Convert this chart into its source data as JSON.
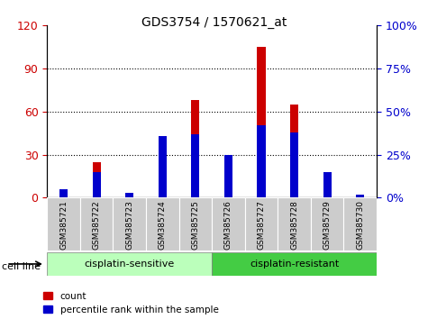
{
  "title": "GDS3754 / 1570621_at",
  "samples": [
    "GSM385721",
    "GSM385722",
    "GSM385723",
    "GSM385724",
    "GSM385725",
    "GSM385726",
    "GSM385727",
    "GSM385728",
    "GSM385729",
    "GSM385730"
  ],
  "counts": [
    3,
    25,
    3,
    43,
    68,
    30,
    105,
    65,
    8,
    2
  ],
  "percentiles": [
    5,
    15,
    3,
    36,
    37,
    25,
    42,
    38,
    15,
    2
  ],
  "left_ylim": [
    0,
    120
  ],
  "right_ylim": [
    0,
    100
  ],
  "left_yticks": [
    0,
    30,
    60,
    90,
    120
  ],
  "right_yticks": [
    0,
    25,
    50,
    75,
    100
  ],
  "left_ytick_labels": [
    "0",
    "30",
    "60",
    "90",
    "120"
  ],
  "right_ytick_labels": [
    "0%",
    "25%",
    "50%",
    "75%",
    "100%"
  ],
  "group_labels": [
    "cisplatin-sensitive",
    "cisplatin-resistant"
  ],
  "bar_color_count": "#cc0000",
  "bar_color_pct": "#0000cc",
  "bar_width": 0.25,
  "tick_color_left": "#cc0000",
  "tick_color_right": "#0000cc",
  "cell_line_label": "cell line",
  "legend_count": "count",
  "legend_pct": "percentile rank within the sample",
  "group1_color": "#bbffbb",
  "group2_color": "#44cc44",
  "sample_box_color": "#cccccc"
}
